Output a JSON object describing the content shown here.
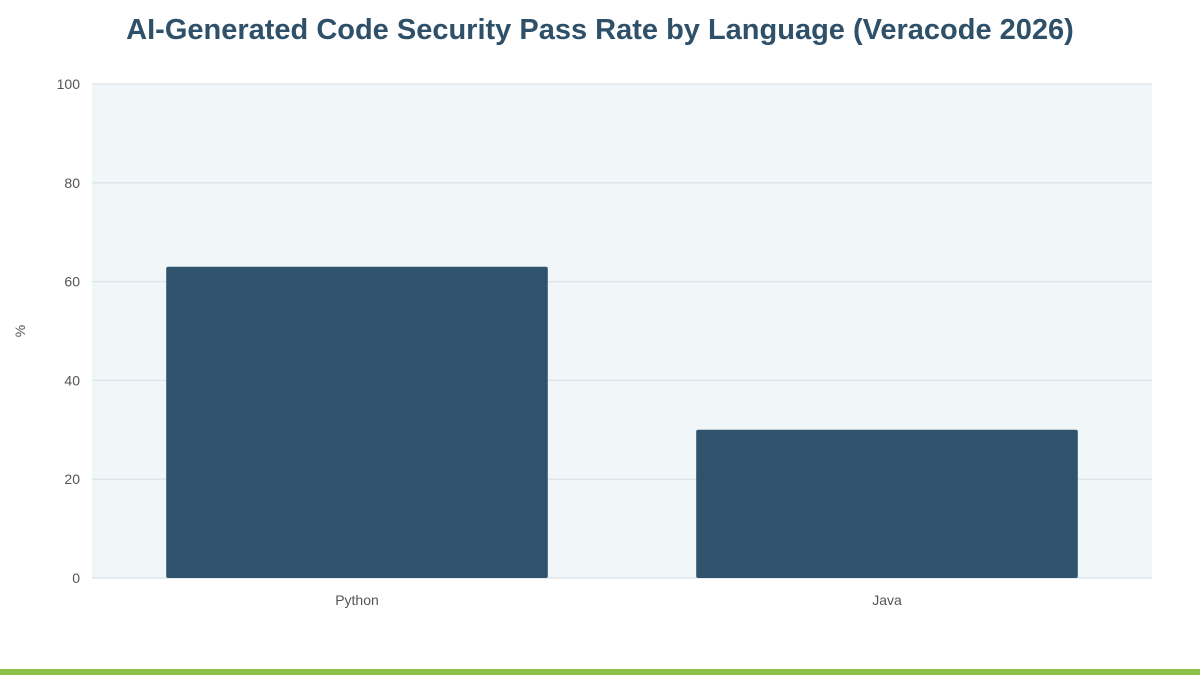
{
  "chart_data": {
    "type": "bar",
    "title": "AI-Generated Code Security Pass Rate by Language (Veracode 2026)",
    "xlabel": "",
    "ylabel": "%",
    "categories": [
      "Python",
      "Java"
    ],
    "values": [
      63,
      30
    ],
    "ylim": [
      0,
      100
    ],
    "yticks": [
      0,
      20,
      40,
      60,
      80,
      100
    ],
    "grid": true,
    "legend": "none"
  },
  "colors": {
    "bar": "#2f536d",
    "plot_background": "#f1f6f9",
    "gridline": "#dde6ec",
    "title": "#2f5069",
    "tick_text": "#555555",
    "accent_bar": "#8cc04b"
  }
}
